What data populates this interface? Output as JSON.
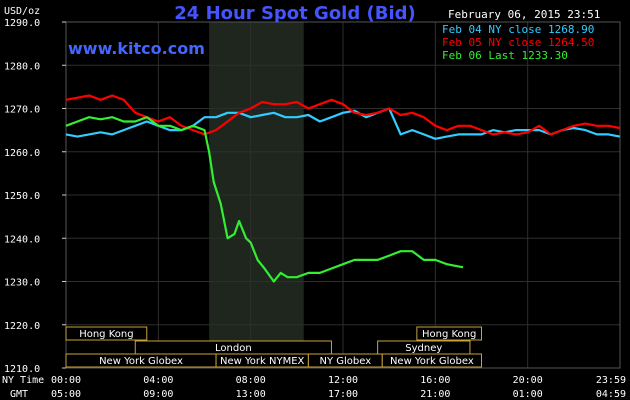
{
  "header": {
    "title": "24 Hour Spot Gold (Bid)",
    "date": "February 06, 2015 23:51",
    "website": "www.kitco.com",
    "y_unit": "USD/oz"
  },
  "legend": [
    {
      "label": "Feb 04 NY close 1268.90",
      "color": "#33ccff"
    },
    {
      "label": "Feb 05 NY close 1264.50",
      "color": "#ff0000"
    },
    {
      "label": "Feb 06 Last 1233.30",
      "color": "#33ee33"
    }
  ],
  "sessions": {
    "rows": [
      [
        {
          "label": "Hong Kong",
          "start": 0,
          "end": 3.5
        },
        {
          "label": "Hong Kong",
          "start": 15.2,
          "end": 18.0
        }
      ],
      [
        {
          "label": "London",
          "start": 3.0,
          "end": 11.5
        },
        {
          "label": "Sydney",
          "start": 13.5,
          "end": 17.5
        }
      ],
      [
        {
          "label": "New York Globex",
          "start": 0,
          "end": 6.5
        },
        {
          "label": "New York NYMEX",
          "start": 6.5,
          "end": 10.5
        },
        {
          "label": "NY Globex",
          "start": 10.5,
          "end": 13.7
        },
        {
          "label": "New York Globex",
          "start": 13.7,
          "end": 18.0
        }
      ]
    ]
  },
  "x_axis": {
    "row1_label": "NY Time",
    "row2_label": "GMT",
    "ny_ticks": [
      "00:00",
      "04:00",
      "08:00",
      "12:00",
      "16:00",
      "20:00",
      "23:59"
    ],
    "gmt_ticks": [
      "05:00",
      "09:00",
      "13:00",
      "17:00",
      "21:00",
      "01:00",
      "04:59"
    ]
  },
  "chart_data": {
    "type": "line",
    "title": "24 Hour Spot Gold (Bid)",
    "ylabel": "USD/oz",
    "ylim": [
      1210,
      1290
    ],
    "yticks": [
      1210.0,
      1220.0,
      1230.0,
      1240.0,
      1250.0,
      1260.0,
      1270.0,
      1280.0,
      1290.0
    ],
    "x_unit": "hours (NY time)",
    "xlim": [
      0,
      24
    ],
    "shaded_region": [
      6.2,
      10.3
    ],
    "grid": true,
    "legend_position": "top-right",
    "series": [
      {
        "name": "Feb 04 NY close 1268.90",
        "color": "#33ccff",
        "x": [
          0,
          0.5,
          1,
          1.5,
          2,
          2.5,
          3,
          3.5,
          4,
          4.5,
          5,
          5.5,
          6,
          6.5,
          7,
          7.5,
          8,
          8.5,
          9,
          9.5,
          10,
          10.5,
          11,
          11.5,
          12,
          12.5,
          13,
          13.5,
          14,
          14.5,
          15,
          15.5,
          16,
          16.5,
          17,
          17.5,
          18,
          18.5,
          19,
          19.5,
          20,
          20.5,
          21,
          21.5,
          22,
          22.5,
          23,
          23.5,
          23.99
        ],
        "y": [
          1264,
          1263.5,
          1264,
          1264.5,
          1264,
          1265,
          1266,
          1267,
          1266,
          1265,
          1265,
          1266,
          1268,
          1268,
          1269,
          1269,
          1268,
          1268.5,
          1269,
          1268,
          1268,
          1268.5,
          1267,
          1268,
          1269,
          1269.5,
          1268,
          1269,
          1270,
          1264,
          1265,
          1264,
          1263,
          1263.5,
          1264,
          1264,
          1264,
          1265,
          1264.5,
          1265,
          1265,
          1265,
          1264,
          1265,
          1265.5,
          1265,
          1264,
          1264,
          1263.5
        ]
      },
      {
        "name": "Feb 05 NY close 1264.50",
        "color": "#ff0000",
        "x": [
          0,
          0.5,
          1,
          1.5,
          2,
          2.5,
          3,
          3.5,
          4,
          4.5,
          5,
          5.5,
          6,
          6.5,
          7,
          7.5,
          8,
          8.5,
          9,
          9.5,
          10,
          10.5,
          11,
          11.5,
          12,
          12.5,
          13,
          13.5,
          14,
          14.5,
          15,
          15.5,
          16,
          16.5,
          17,
          17.5,
          18,
          18.5,
          19,
          19.5,
          20,
          20.5,
          21,
          21.5,
          22,
          22.5,
          23,
          23.5,
          23.99
        ],
        "y": [
          1272,
          1272.5,
          1273,
          1272,
          1273,
          1272,
          1269,
          1268,
          1267,
          1268,
          1266,
          1265,
          1264,
          1265,
          1267,
          1269,
          1270,
          1271.5,
          1271,
          1271,
          1271.5,
          1270,
          1271,
          1272,
          1271,
          1269,
          1268.5,
          1269,
          1270,
          1268.5,
          1269,
          1268,
          1266,
          1265,
          1266,
          1266,
          1265,
          1264,
          1264.5,
          1264,
          1264.5,
          1266,
          1264,
          1265,
          1266,
          1266.5,
          1266,
          1266,
          1265.5
        ]
      },
      {
        "name": "Feb 06 Last 1233.30",
        "color": "#33ee33",
        "x": [
          0,
          0.5,
          1,
          1.5,
          2,
          2.5,
          3,
          3.5,
          4,
          4.5,
          5,
          5.5,
          6,
          6.2,
          6.4,
          6.7,
          7,
          7.3,
          7.5,
          7.8,
          8,
          8.3,
          8.6,
          9,
          9.3,
          9.6,
          10,
          10.5,
          11,
          11.5,
          12,
          12.5,
          13,
          13.5,
          14,
          14.5,
          15,
          15.5,
          16,
          16.5,
          17,
          17.2
        ],
        "y": [
          1266,
          1267,
          1268,
          1267.5,
          1268,
          1267,
          1267,
          1268,
          1266,
          1266,
          1265,
          1266,
          1265,
          1260,
          1253,
          1248,
          1240,
          1241,
          1244,
          1240,
          1239,
          1235,
          1233,
          1230,
          1232,
          1231,
          1231,
          1232,
          1232,
          1233,
          1234,
          1235,
          1235,
          1235,
          1236,
          1237,
          1237,
          1235,
          1235,
          1234,
          1233.5,
          1233.3
        ]
      }
    ]
  }
}
